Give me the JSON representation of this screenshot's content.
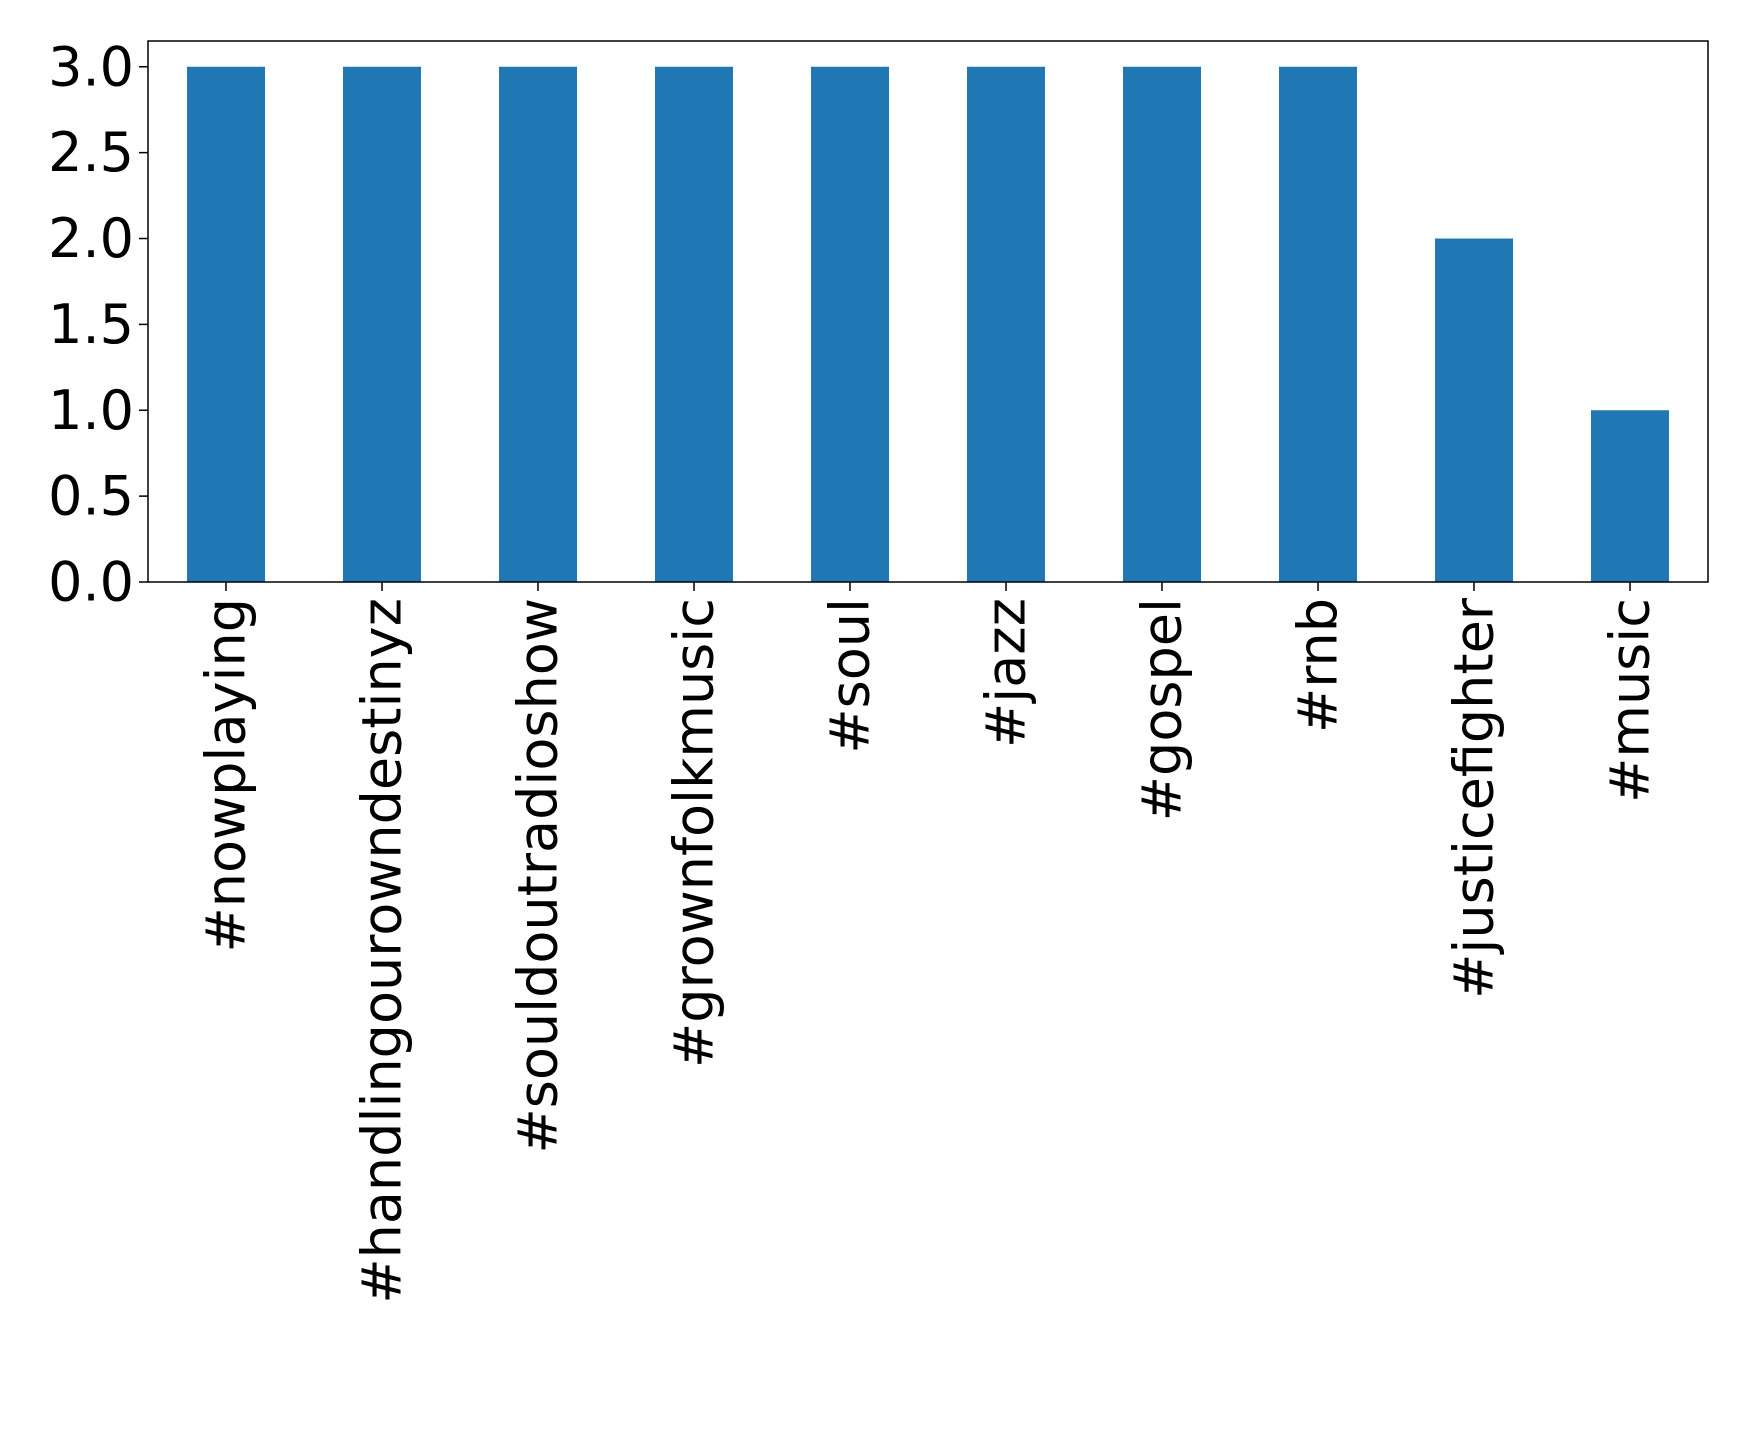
{
  "chart_data": {
    "type": "bar",
    "categories": [
      "#nowplaying",
      "#handlingourowndestinyz",
      "#souldoutradioshow",
      "#grownfolkmusic",
      "#soul",
      "#jazz",
      "#gospel",
      "#rnb",
      "#justicefighter",
      "#music"
    ],
    "values": [
      3,
      3,
      3,
      3,
      3,
      3,
      3,
      3,
      2,
      1
    ],
    "color": "#1f77b4",
    "ylim": [
      0,
      3.15
    ],
    "yticks": [
      {
        "value": 0,
        "label": "0.0"
      },
      {
        "value": 0.5,
        "label": "0.5"
      },
      {
        "value": 1,
        "label": "1.0"
      },
      {
        "value": 1.5,
        "label": "1.5"
      },
      {
        "value": 2,
        "label": "2.0"
      },
      {
        "value": 2.5,
        "label": "2.5"
      },
      {
        "value": 3,
        "label": "3.0"
      }
    ],
    "grid": false
  }
}
